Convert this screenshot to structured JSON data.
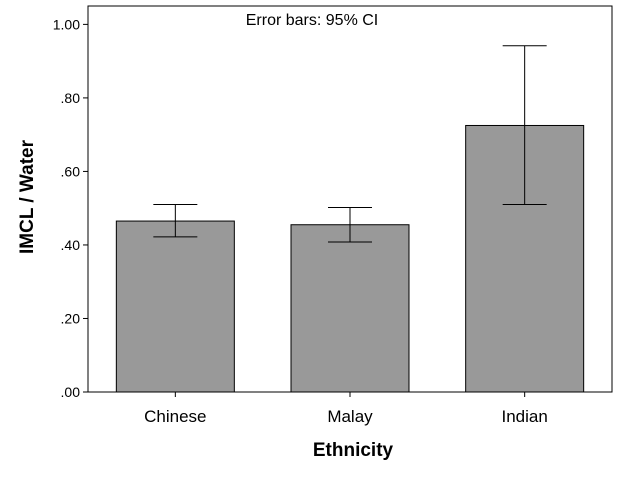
{
  "chart_data": {
    "type": "bar",
    "title": "",
    "annotation": "Error bars: 95% CI",
    "xlabel": "Ethnicity",
    "ylabel": "IMCL / Water",
    "categories": [
      "Chinese",
      "Malay",
      "Indian"
    ],
    "values": [
      0.465,
      0.455,
      0.725
    ],
    "ci_lower": [
      0.422,
      0.408,
      0.51
    ],
    "ci_upper": [
      0.51,
      0.502,
      0.942
    ],
    "ylim": [
      0,
      1.05
    ],
    "yticks": [
      0,
      0.2,
      0.4,
      0.6,
      0.8,
      1.0
    ],
    "ytick_labels": [
      ".00",
      ".20",
      ".40",
      ".60",
      ".80",
      "1.00"
    ],
    "grid": false,
    "colors": {
      "bar_fill": "#999999",
      "bar_stroke": "#000000",
      "error_bar": "#000000",
      "frame": "#000000"
    }
  }
}
